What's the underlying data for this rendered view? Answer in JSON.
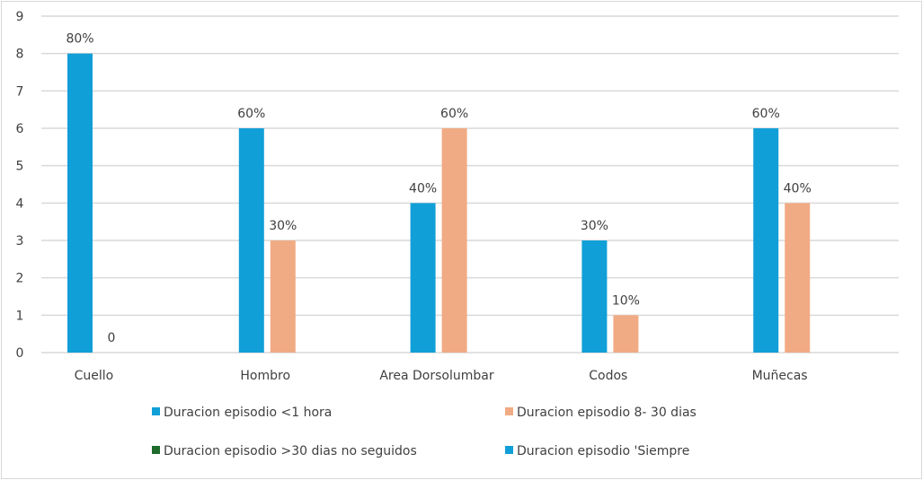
{
  "chart_data": {
    "type": "bar",
    "title": "",
    "xlabel": "",
    "ylabel": "",
    "ylim": [
      0,
      9
    ],
    "yticks": [
      "0",
      "1",
      "2",
      "3",
      "4",
      "5",
      "6",
      "7",
      "8",
      "9"
    ],
    "grid": true,
    "legend_position": "bottom",
    "categories": [
      "Cuello",
      "Hombro",
      "Area Dorsolumbar",
      "Codos",
      "Muñecas"
    ],
    "series": [
      {
        "name": "Duracion episodio <1 hora",
        "color": "#119fd7",
        "values": [
          8,
          6,
          4,
          3,
          6
        ],
        "labels": [
          "80%",
          "60%",
          "40%",
          "30%",
          "60%"
        ]
      },
      {
        "name": "Duracion episodio 8- 30 dias",
        "color": "#f1ab84",
        "values": [
          0,
          3,
          6,
          1,
          4
        ],
        "labels": [
          "0",
          "30%",
          "60%",
          "10%",
          "40%"
        ]
      },
      {
        "name": "Duracion episodio >30 dias no seguidos",
        "color": "#1e6b2b",
        "values": [
          null,
          null,
          null,
          null,
          null
        ],
        "labels": []
      },
      {
        "name": "Duracion episodio 'Siempre",
        "color": "#119fd7",
        "values": [
          null,
          null,
          null,
          null,
          null
        ],
        "labels": []
      }
    ]
  }
}
